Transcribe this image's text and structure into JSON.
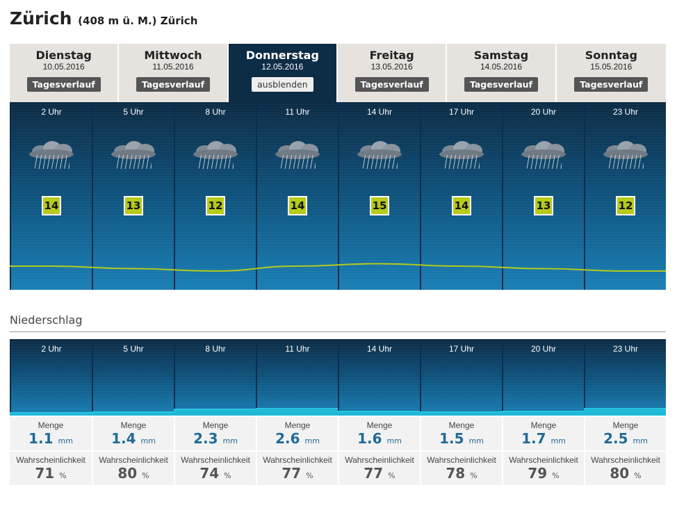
{
  "header": {
    "city": "Zürich",
    "detail": "(408 m ü. M.) Zürich"
  },
  "days": [
    {
      "day": "Dienstag",
      "date": "10.05.2016",
      "button": "Tagesverlauf",
      "active": false
    },
    {
      "day": "Mittwoch",
      "date": "11.05.2016",
      "button": "Tagesverlauf",
      "active": false
    },
    {
      "day": "Donnerstag",
      "date": "12.05.2016",
      "button": "ausblenden",
      "active": true
    },
    {
      "day": "Freitag",
      "date": "13.05.2016",
      "button": "Tagesverlauf",
      "active": false
    },
    {
      "day": "Samstag",
      "date": "14.05.2016",
      "button": "Tagesverlauf",
      "active": false
    },
    {
      "day": "Sonntag",
      "date": "15.05.2016",
      "button": "Tagesverlauf",
      "active": false
    }
  ],
  "hours": [
    {
      "time": "2 Uhr",
      "icon": "rain-cloud-icon",
      "temp": "14"
    },
    {
      "time": "5 Uhr",
      "icon": "rain-cloud-icon",
      "temp": "13"
    },
    {
      "time": "8 Uhr",
      "icon": "rain-cloud-icon",
      "temp": "12"
    },
    {
      "time": "11 Uhr",
      "icon": "rain-cloud-icon",
      "temp": "14"
    },
    {
      "time": "14 Uhr",
      "icon": "rain-cloud-icon",
      "temp": "15"
    },
    {
      "time": "17 Uhr",
      "icon": "rain-cloud-icon",
      "temp": "14"
    },
    {
      "time": "20 Uhr",
      "icon": "rain-cloud-icon",
      "temp": "13"
    },
    {
      "time": "23 Uhr",
      "icon": "rain-cloud-icon",
      "temp": "12"
    }
  ],
  "precip": {
    "title": "Niederschlag",
    "amount_label": "Menge",
    "amount_unit": "mm",
    "prob_label": "Wahrscheinlichkeit",
    "prob_unit": "%",
    "amounts": [
      "1.1",
      "1.4",
      "2.3",
      "2.6",
      "1.6",
      "1.5",
      "1.7",
      "2.5"
    ],
    "probabilities": [
      "71",
      "80",
      "74",
      "77",
      "77",
      "78",
      "79",
      "80"
    ]
  },
  "colors": {
    "temp_badge": "#b6cb1a",
    "panel_dark": "#0d2c45",
    "rain_bar": "#1fb8d8",
    "temp_line": "#b6cb1a"
  }
}
